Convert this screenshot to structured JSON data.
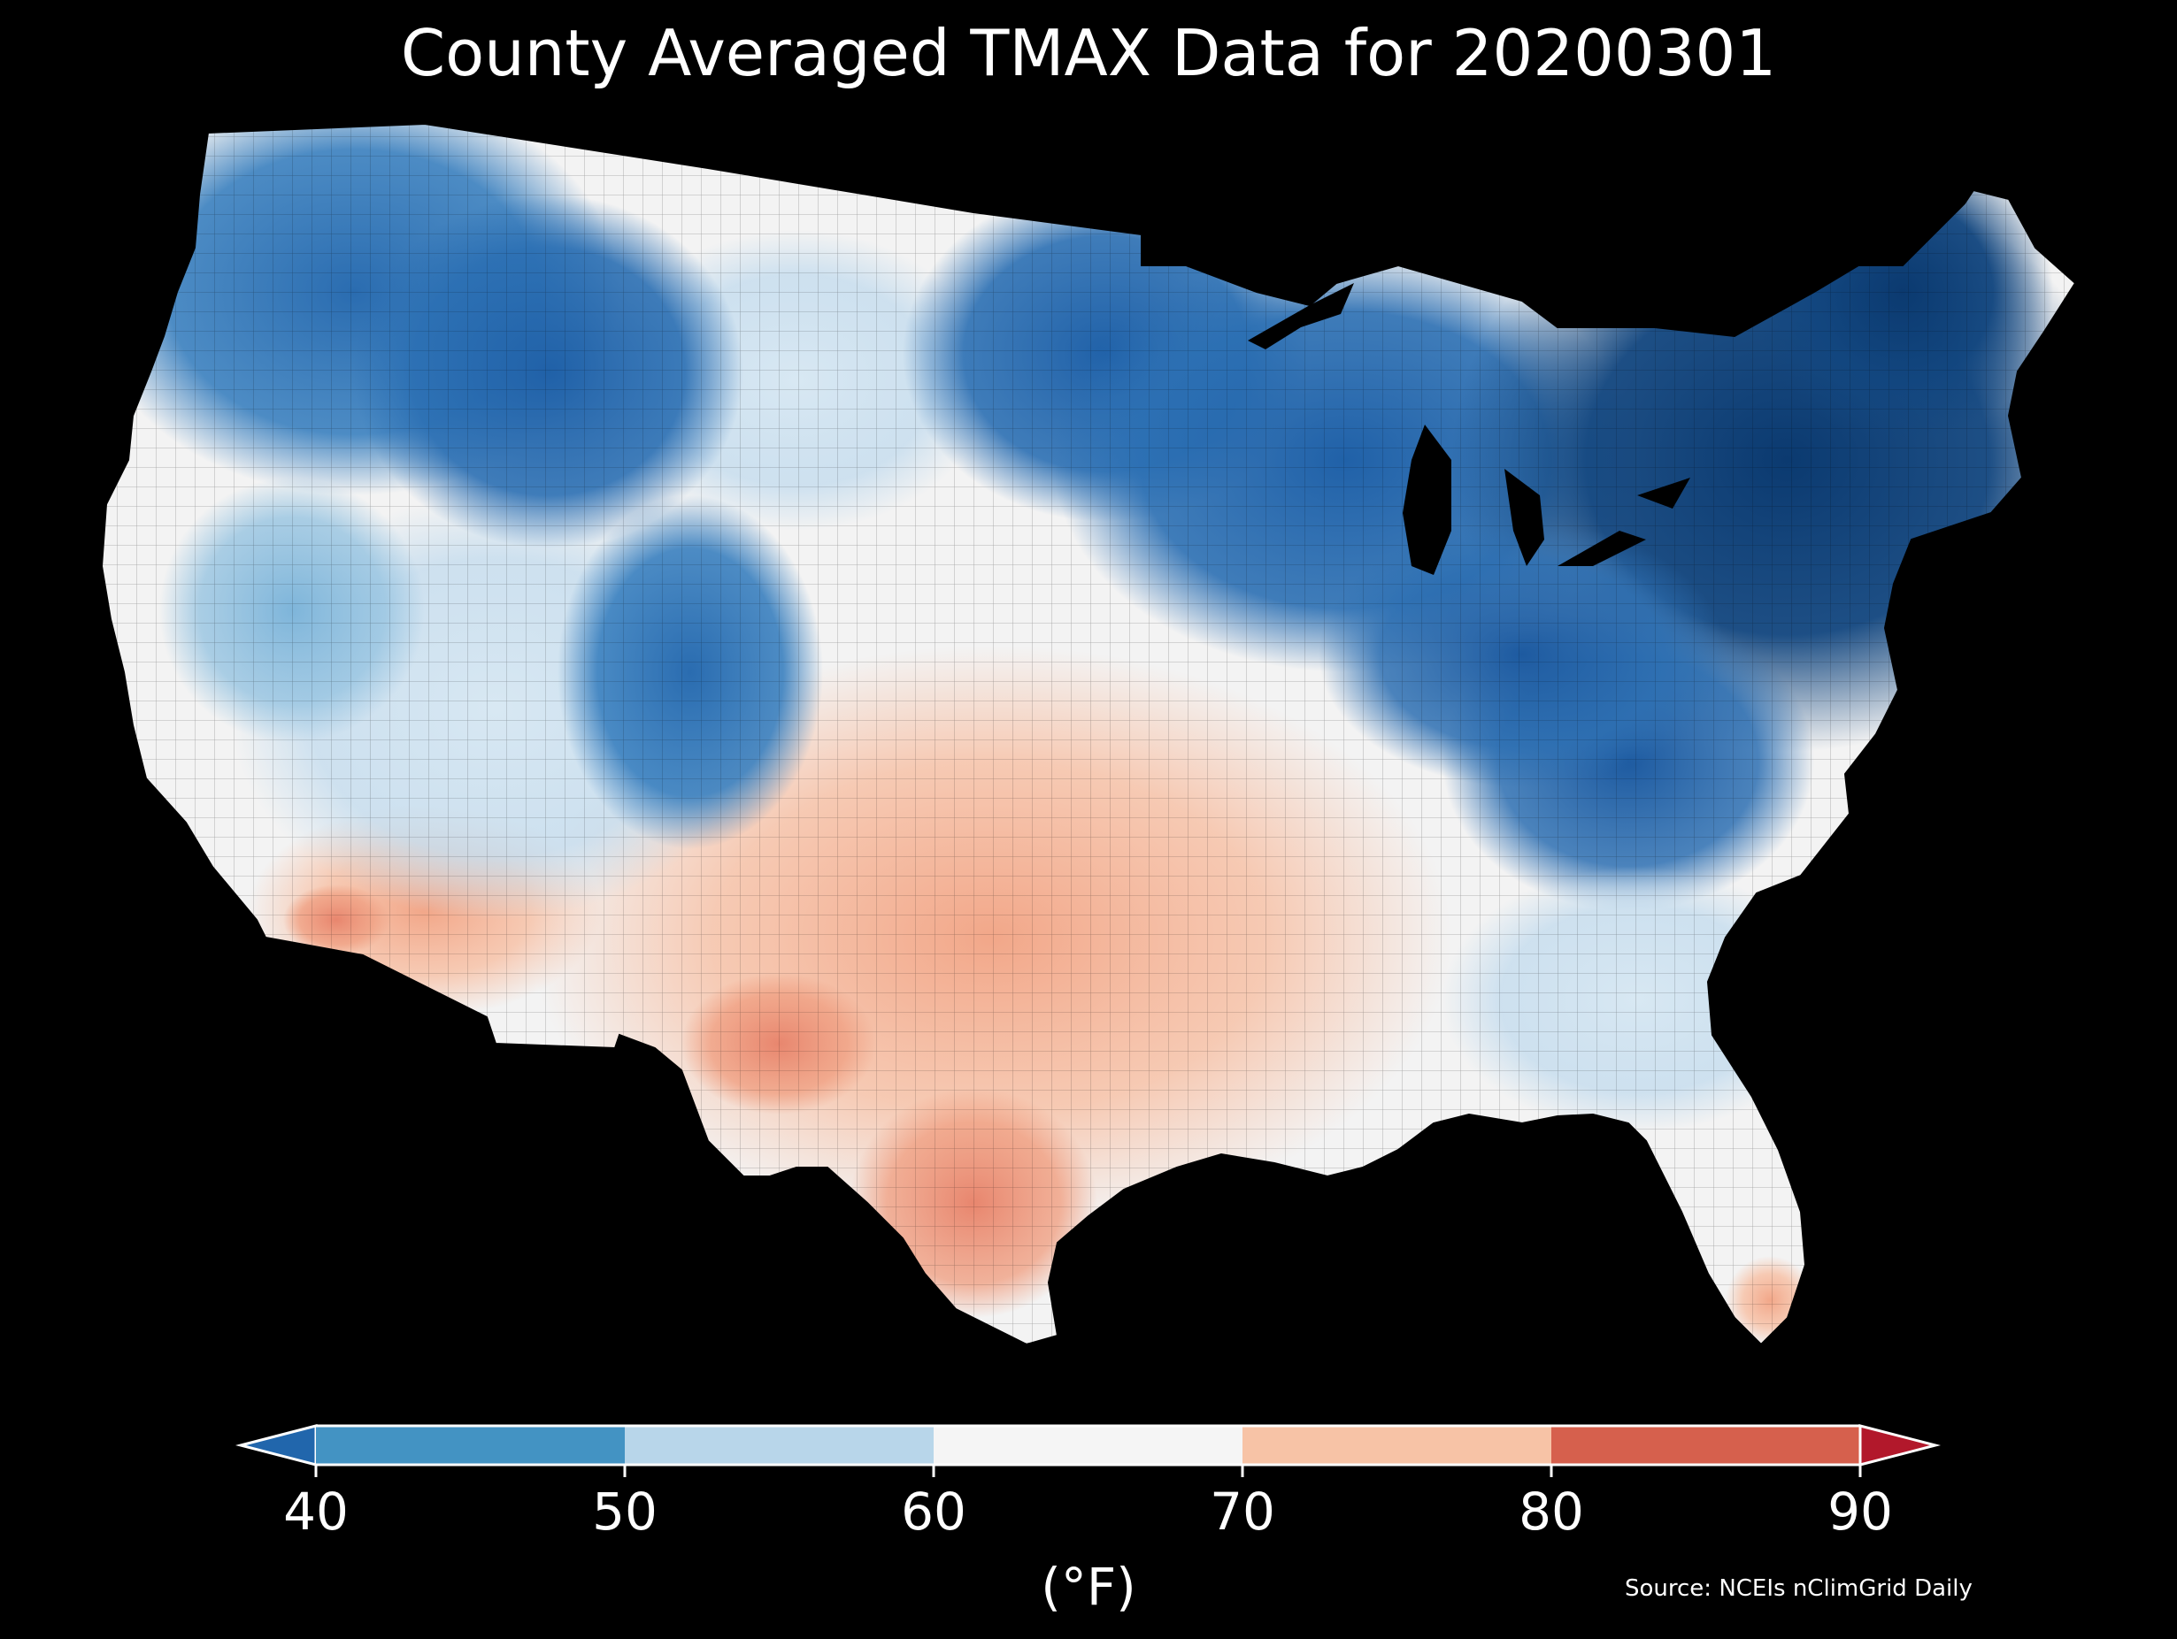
{
  "title": "County Averaged TMAX Data for 20200301",
  "legend": {
    "units": "(°F)",
    "ticks": [
      "40",
      "50",
      "60",
      "70",
      "80",
      "90"
    ],
    "bins": [
      {
        "range": "<40",
        "color": "#2166ac"
      },
      {
        "range": "40-50",
        "color": "#4393c3"
      },
      {
        "range": "50-60",
        "color": "#b8d6ea"
      },
      {
        "range": "60-70",
        "color": "#f5f5f5"
      },
      {
        "range": "70-80",
        "color": "#f7c3a6"
      },
      {
        "range": "80-90",
        "color": "#d6604d"
      },
      {
        "range": ">90",
        "color": "#b2182b"
      }
    ]
  },
  "source": "Source: NCEIs nClimGrid Daily",
  "colors": {
    "background": "#000000",
    "cold_deep": "#0d3f78",
    "cold": "#2a6db2",
    "cool": "#5aa0cf",
    "mild_cool": "#b8d6ea",
    "neutral": "#f3f3f3",
    "warm": "#f6c3a8",
    "hot": "#e8866e"
  }
}
